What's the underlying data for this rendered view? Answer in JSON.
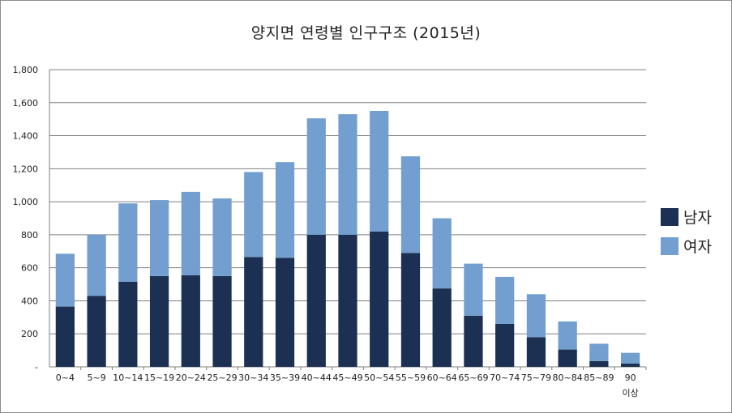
{
  "chart_data": {
    "type": "bar",
    "stacked": true,
    "title": "양지면 연령별 인구구조 (2015년)",
    "categories": [
      [
        "0~4"
      ],
      [
        "5~9"
      ],
      [
        "10~14"
      ],
      [
        "15~19"
      ],
      [
        "20~24"
      ],
      [
        "25~29"
      ],
      [
        "30~34"
      ],
      [
        "35~39"
      ],
      [
        "40~44"
      ],
      [
        "45~49"
      ],
      [
        "50~54"
      ],
      [
        "55~59"
      ],
      [
        "60~64"
      ],
      [
        "65~69"
      ],
      [
        "70~74"
      ],
      [
        "75~79"
      ],
      [
        "80~84"
      ],
      [
        "85~89"
      ],
      [
        "90",
        "이상"
      ]
    ],
    "series": [
      {
        "name": "남자",
        "color": "#1b3052",
        "values": [
          365,
          430,
          515,
          550,
          555,
          550,
          665,
          660,
          800,
          800,
          820,
          690,
          475,
          310,
          260,
          180,
          105,
          35,
          20
        ]
      },
      {
        "name": "여자",
        "color": "#729fcf",
        "values": [
          320,
          370,
          475,
          460,
          505,
          470,
          515,
          580,
          705,
          730,
          730,
          585,
          425,
          315,
          285,
          260,
          170,
          105,
          65
        ]
      }
    ],
    "yticks": [
      "-",
      "200",
      "400",
      "600",
      "800",
      "1,000",
      "1,200",
      "1,400",
      "1,600",
      "1,800"
    ],
    "ylim": [
      0,
      1800
    ],
    "grid": true,
    "legend_position": "right"
  }
}
